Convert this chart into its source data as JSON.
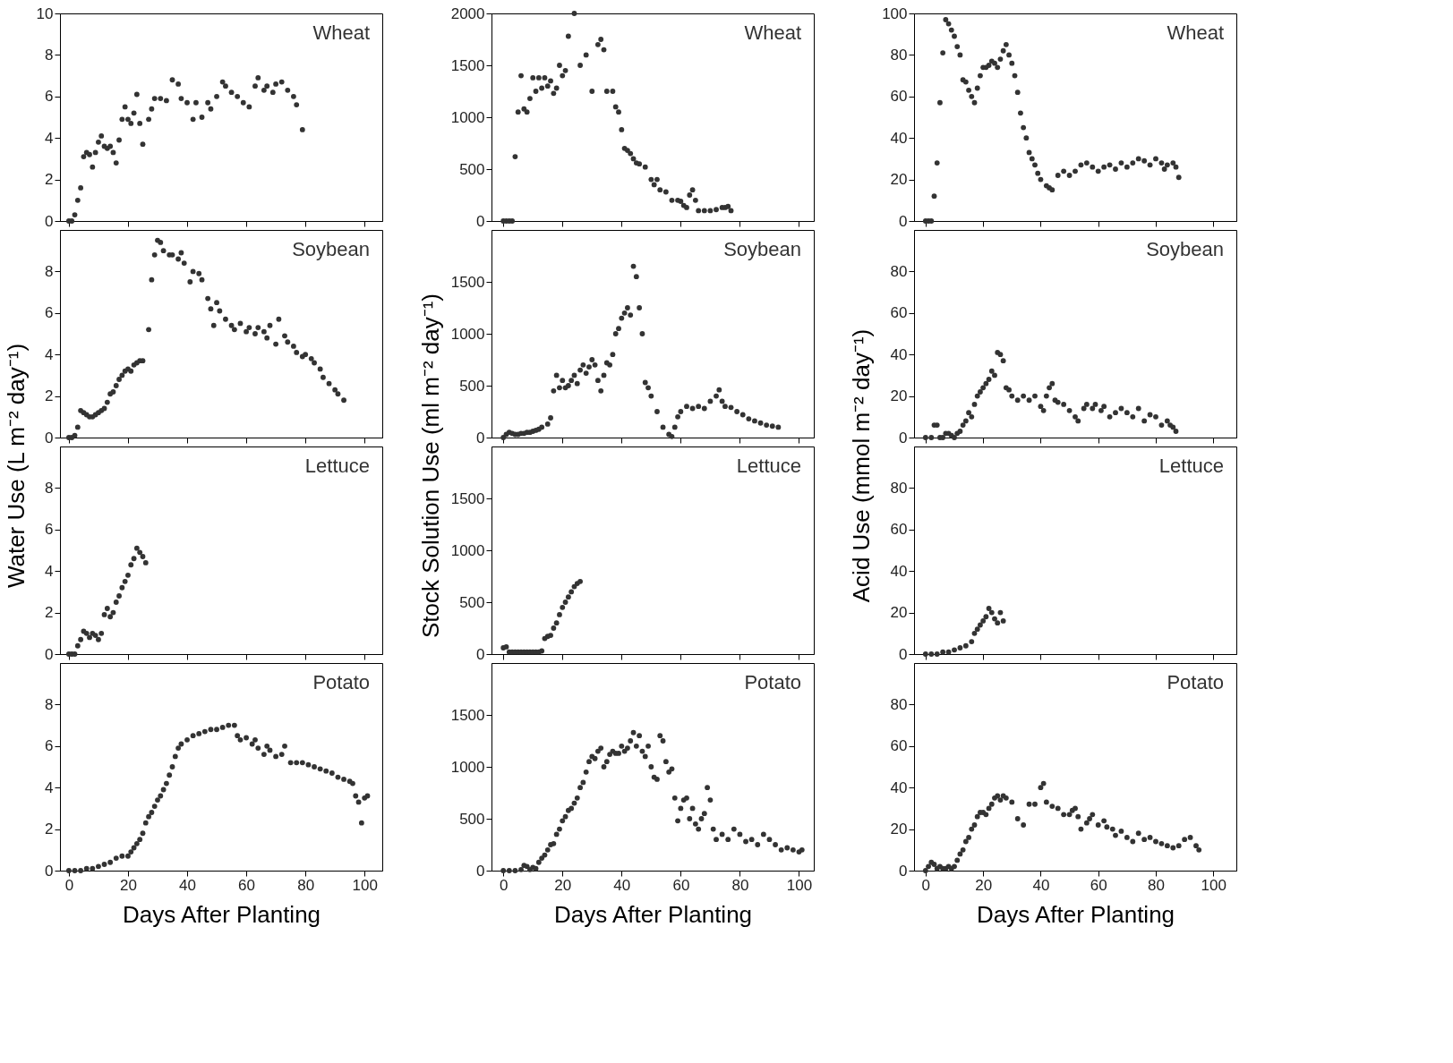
{
  "chart_data": [
    {
      "type": "scatter",
      "title": "Wheat",
      "ylabel": "Water Use (L m⁻² day⁻¹)",
      "color": "#333333",
      "marker": "circle",
      "tick_labels": "y",
      "xlim": [
        -3,
        106
      ],
      "ylim": [
        0,
        10
      ],
      "xticks": [
        0,
        20,
        40,
        60,
        80,
        100
      ],
      "yticks": [
        0,
        2,
        4,
        6,
        8,
        10
      ],
      "x": [
        0,
        1,
        2,
        3,
        4,
        5,
        6,
        7,
        8,
        9,
        10,
        11,
        12,
        13,
        14,
        15,
        16,
        17,
        18,
        19,
        20,
        21,
        22,
        23,
        24,
        25,
        27,
        28,
        29,
        31,
        33,
        35,
        37,
        38,
        40,
        42,
        43,
        45,
        47,
        48,
        50,
        52,
        53,
        55,
        57,
        59,
        61,
        63,
        64,
        66,
        67,
        69,
        70,
        72,
        74,
        76,
        77,
        79
      ],
      "values": [
        0,
        0,
        0.3,
        1.0,
        1.6,
        3.1,
        3.3,
        3.2,
        2.6,
        3.3,
        3.8,
        4.1,
        3.6,
        3.5,
        3.6,
        3.3,
        2.8,
        3.9,
        4.9,
        5.5,
        4.9,
        4.7,
        5.2,
        6.1,
        4.7,
        3.7,
        4.9,
        5.4,
        5.9,
        5.9,
        5.8,
        6.8,
        6.6,
        5.9,
        5.7,
        4.9,
        5.7,
        5.0,
        5.7,
        5.4,
        6.0,
        6.7,
        6.5,
        6.2,
        6.0,
        5.7,
        5.5,
        6.5,
        6.9,
        6.3,
        6.5,
        6.2,
        6.6,
        6.7,
        6.3,
        6.0,
        5.6,
        4.4
      ]
    },
    {
      "type": "scatter",
      "title": "Soybean",
      "color": "#333333",
      "marker": "circle",
      "tick_labels": "y",
      "xlim": [
        -3,
        106
      ],
      "ylim": [
        0,
        10
      ],
      "xticks": [
        0,
        20,
        40,
        60,
        80,
        100
      ],
      "yticks": [
        0,
        2,
        4,
        6,
        8
      ],
      "x": [
        0,
        1,
        2,
        3,
        4,
        5,
        6,
        7,
        8,
        9,
        10,
        11,
        12,
        13,
        14,
        15,
        16,
        17,
        18,
        19,
        20,
        21,
        22,
        23,
        24,
        25,
        27,
        28,
        29,
        30,
        31,
        32,
        34,
        35,
        37,
        38,
        39,
        41,
        42,
        44,
        45,
        47,
        48,
        49,
        50,
        51,
        53,
        55,
        56,
        58,
        60,
        61,
        63,
        64,
        66,
        67,
        68,
        70,
        71,
        73,
        74,
        76,
        77,
        79,
        80,
        82,
        83,
        85,
        86,
        88,
        90,
        91,
        93
      ],
      "values": [
        0,
        0,
        0.1,
        0.5,
        1.3,
        1.2,
        1.1,
        1.0,
        1.0,
        1.1,
        1.2,
        1.3,
        1.4,
        1.7,
        2.1,
        2.2,
        2.5,
        2.8,
        3.0,
        3.2,
        3.3,
        3.2,
        3.5,
        3.6,
        3.7,
        3.7,
        5.2,
        7.6,
        8.8,
        9.5,
        9.4,
        9.0,
        8.8,
        8.8,
        8.6,
        8.9,
        8.4,
        7.5,
        8.0,
        7.9,
        7.6,
        6.7,
        6.2,
        5.4,
        6.5,
        6.1,
        5.7,
        5.4,
        5.2,
        5.5,
        5.1,
        5.3,
        5.0,
        5.3,
        5.1,
        4.8,
        5.4,
        4.5,
        5.7,
        4.9,
        4.6,
        4.4,
        4.1,
        3.9,
        4.0,
        3.8,
        3.6,
        3.3,
        2.9,
        2.6,
        2.3,
        2.1,
        1.8
      ]
    },
    {
      "type": "scatter",
      "title": "Lettuce",
      "color": "#333333",
      "marker": "circle",
      "tick_labels": "y",
      "xlim": [
        -3,
        106
      ],
      "ylim": [
        0,
        10
      ],
      "xticks": [
        0,
        20,
        40,
        60,
        80,
        100
      ],
      "yticks": [
        0,
        2,
        4,
        6,
        8
      ],
      "x": [
        0,
        1,
        2,
        3,
        4,
        5,
        6,
        7,
        8,
        9,
        10,
        11,
        12,
        13,
        14,
        15,
        16,
        17,
        18,
        19,
        20,
        21,
        22,
        23,
        24,
        25,
        26
      ],
      "values": [
        0,
        0,
        0,
        0.4,
        0.7,
        1.1,
        1.0,
        0.8,
        1.0,
        0.9,
        0.7,
        1.0,
        1.9,
        2.2,
        1.8,
        2.0,
        2.5,
        2.8,
        3.2,
        3.5,
        3.8,
        4.3,
        4.6,
        5.1,
        4.9,
        4.7,
        4.4
      ]
    },
    {
      "type": "scatter",
      "title": "Potato",
      "xlabel": "Days After Planting",
      "color": "#333333",
      "marker": "circle",
      "xlim": [
        -3,
        106
      ],
      "ylim": [
        0,
        10
      ],
      "xticks": [
        0,
        20,
        40,
        60,
        80,
        100
      ],
      "yticks": [
        0,
        2,
        4,
        6,
        8
      ],
      "x": [
        0,
        2,
        4,
        6,
        8,
        10,
        12,
        14,
        16,
        18,
        20,
        21,
        22,
        23,
        24,
        25,
        26,
        27,
        28,
        29,
        30,
        31,
        32,
        33,
        34,
        35,
        36,
        37,
        38,
        40,
        42,
        44,
        46,
        48,
        50,
        52,
        54,
        56,
        57,
        58,
        60,
        62,
        63,
        64,
        66,
        67,
        68,
        70,
        72,
        73,
        75,
        77,
        79,
        81,
        83,
        85,
        87,
        89,
        91,
        93,
        95,
        96,
        97,
        98,
        99,
        100,
        101
      ],
      "values": [
        0,
        0,
        0,
        0.1,
        0.1,
        0.2,
        0.3,
        0.4,
        0.6,
        0.7,
        0.7,
        0.9,
        1.1,
        1.3,
        1.5,
        1.8,
        2.3,
        2.6,
        2.8,
        3.1,
        3.4,
        3.6,
        3.9,
        4.2,
        4.6,
        5.0,
        5.5,
        5.9,
        6.1,
        6.3,
        6.5,
        6.6,
        6.7,
        6.8,
        6.8,
        6.9,
        7.0,
        7.0,
        6.5,
        6.3,
        6.4,
        6.1,
        6.3,
        5.9,
        5.6,
        6.0,
        5.8,
        5.5,
        5.6,
        6.0,
        5.2,
        5.2,
        5.2,
        5.1,
        5.0,
        4.9,
        4.8,
        4.7,
        4.5,
        4.4,
        4.3,
        4.2,
        3.6,
        3.3,
        2.3,
        3.5,
        3.6
      ]
    },
    {
      "type": "scatter",
      "title": "Wheat",
      "ylabel": "Stock Solution Use (ml m⁻² day⁻¹)",
      "color": "#333333",
      "marker": "circle",
      "tick_labels": "y",
      "xlim": [
        -4,
        105
      ],
      "ylim": [
        0,
        2000
      ],
      "xticks": [
        0,
        20,
        40,
        60,
        80,
        100
      ],
      "yticks": [
        0,
        500,
        1000,
        1500,
        2000
      ],
      "x": [
        0,
        1,
        2,
        3,
        4,
        5,
        6,
        7,
        8,
        9,
        10,
        11,
        12,
        13,
        14,
        15,
        16,
        17,
        18,
        19,
        20,
        21,
        22,
        24,
        26,
        28,
        30,
        32,
        33,
        34,
        35,
        37,
        38,
        39,
        40,
        41,
        42,
        43,
        44,
        45,
        46,
        48,
        50,
        51,
        52,
        53,
        55,
        57,
        59,
        60,
        61,
        62,
        63,
        64,
        65,
        66,
        68,
        70,
        72,
        74,
        75,
        76,
        77
      ],
      "values": [
        0,
        0,
        0,
        0,
        620,
        1050,
        1400,
        1080,
        1050,
        1180,
        1380,
        1250,
        1380,
        1280,
        1380,
        1300,
        1350,
        1230,
        1280,
        1500,
        1400,
        1450,
        1780,
        2000,
        1500,
        1600,
        1250,
        1700,
        1750,
        1650,
        1250,
        1250,
        1100,
        1050,
        880,
        700,
        680,
        650,
        600,
        560,
        550,
        520,
        400,
        350,
        400,
        300,
        280,
        200,
        200,
        190,
        150,
        130,
        250,
        300,
        200,
        100,
        100,
        100,
        110,
        130,
        130,
        140,
        100
      ]
    },
    {
      "type": "scatter",
      "title": "Soybean",
      "color": "#333333",
      "marker": "circle",
      "tick_labels": "y",
      "xlim": [
        -4,
        105
      ],
      "ylim": [
        0,
        2000
      ],
      "xticks": [
        0,
        20,
        40,
        60,
        80,
        100
      ],
      "yticks": [
        0,
        500,
        1000,
        1500
      ],
      "x": [
        0,
        1,
        2,
        3,
        4,
        5,
        6,
        7,
        8,
        9,
        10,
        11,
        12,
        13,
        15,
        16,
        17,
        18,
        19,
        20,
        21,
        22,
        23,
        24,
        25,
        26,
        27,
        28,
        29,
        30,
        31,
        32,
        33,
        34,
        35,
        36,
        37,
        38,
        39,
        40,
        41,
        42,
        43,
        44,
        45,
        46,
        47,
        48,
        49,
        50,
        52,
        54,
        56,
        57,
        58,
        59,
        60,
        62,
        64,
        66,
        68,
        70,
        72,
        73,
        74,
        75,
        77,
        79,
        81,
        83,
        85,
        87,
        89,
        91,
        93
      ],
      "values": [
        0,
        30,
        50,
        40,
        30,
        30,
        40,
        40,
        50,
        50,
        60,
        70,
        80,
        100,
        130,
        190,
        450,
        600,
        480,
        550,
        480,
        500,
        550,
        600,
        520,
        650,
        700,
        620,
        680,
        750,
        700,
        550,
        450,
        600,
        720,
        700,
        800,
        1000,
        1050,
        1150,
        1200,
        1250,
        1180,
        1650,
        1550,
        1250,
        1000,
        530,
        480,
        400,
        250,
        100,
        30,
        10,
        100,
        200,
        250,
        300,
        280,
        300,
        280,
        350,
        400,
        460,
        350,
        300,
        290,
        250,
        220,
        180,
        160,
        140,
        120,
        110,
        100
      ]
    },
    {
      "type": "scatter",
      "title": "Lettuce",
      "color": "#333333",
      "marker": "circle",
      "tick_labels": "y",
      "xlim": [
        -4,
        105
      ],
      "ylim": [
        0,
        2000
      ],
      "xticks": [
        0,
        20,
        40,
        60,
        80,
        100
      ],
      "yticks": [
        0,
        500,
        1000,
        1500
      ],
      "x": [
        0,
        1,
        2,
        3,
        4,
        5,
        6,
        7,
        8,
        9,
        10,
        11,
        12,
        13,
        14,
        15,
        16,
        17,
        18,
        19,
        20,
        21,
        22,
        23,
        24,
        25,
        26
      ],
      "values": [
        60,
        70,
        20,
        20,
        20,
        20,
        20,
        20,
        20,
        20,
        20,
        20,
        20,
        30,
        150,
        170,
        180,
        250,
        300,
        380,
        450,
        500,
        550,
        600,
        650,
        680,
        700
      ]
    },
    {
      "type": "scatter",
      "title": "Potato",
      "xlabel": "Days After Planting",
      "color": "#333333",
      "marker": "circle",
      "xlim": [
        -4,
        105
      ],
      "ylim": [
        0,
        2000
      ],
      "xticks": [
        0,
        20,
        40,
        60,
        80,
        100
      ],
      "yticks": [
        0,
        500,
        1000,
        1500
      ],
      "x": [
        0,
        2,
        4,
        6,
        7,
        8,
        9,
        10,
        11,
        12,
        13,
        14,
        15,
        16,
        17,
        18,
        19,
        20,
        21,
        22,
        23,
        24,
        25,
        26,
        27,
        28,
        29,
        30,
        31,
        32,
        33,
        34,
        35,
        36,
        37,
        38,
        39,
        40,
        41,
        42,
        43,
        44,
        45,
        46,
        47,
        48,
        49,
        50,
        51,
        52,
        53,
        54,
        55,
        56,
        57,
        58,
        59,
        60,
        61,
        62,
        63,
        64,
        65,
        66,
        67,
        68,
        69,
        70,
        71,
        72,
        74,
        76,
        78,
        80,
        82,
        84,
        86,
        88,
        90,
        92,
        94,
        96,
        98,
        100,
        101
      ],
      "values": [
        0,
        0,
        0,
        10,
        50,
        40,
        10,
        30,
        20,
        80,
        120,
        150,
        200,
        250,
        260,
        350,
        400,
        480,
        520,
        580,
        600,
        650,
        700,
        800,
        850,
        950,
        1050,
        1100,
        1080,
        1150,
        1180,
        1000,
        1050,
        1120,
        1150,
        1130,
        1130,
        1200,
        1150,
        1180,
        1250,
        1330,
        1200,
        1300,
        1150,
        1100,
        1200,
        1000,
        900,
        880,
        1300,
        1250,
        1050,
        950,
        980,
        700,
        480,
        600,
        680,
        700,
        500,
        600,
        450,
        400,
        500,
        550,
        800,
        680,
        400,
        300,
        350,
        300,
        400,
        350,
        280,
        300,
        250,
        350,
        300,
        250,
        200,
        220,
        200,
        180,
        200
      ]
    },
    {
      "type": "scatter",
      "title": "Wheat",
      "ylabel": "Acid Use (mmol m⁻² day⁻¹)",
      "color": "#333333",
      "marker": "circle",
      "tick_labels": "y",
      "xlim": [
        -4,
        108
      ],
      "ylim": [
        0,
        100
      ],
      "xticks": [
        0,
        20,
        40,
        60,
        80,
        100
      ],
      "yticks": [
        0,
        20,
        40,
        60,
        80,
        100
      ],
      "x": [
        0,
        1,
        2,
        3,
        4,
        5,
        6,
        7,
        8,
        9,
        10,
        11,
        12,
        13,
        14,
        15,
        16,
        17,
        18,
        19,
        20,
        21,
        22,
        23,
        24,
        25,
        26,
        27,
        28,
        29,
        30,
        31,
        32,
        33,
        34,
        35,
        36,
        37,
        38,
        39,
        40,
        42,
        43,
        44,
        46,
        48,
        50,
        52,
        54,
        56,
        58,
        60,
        62,
        64,
        66,
        68,
        70,
        72,
        74,
        76,
        78,
        80,
        82,
        83,
        84,
        86,
        87,
        88
      ],
      "values": [
        0,
        0,
        0,
        12,
        28,
        57,
        81,
        97,
        95,
        92,
        89,
        84,
        80,
        68,
        67,
        63,
        60,
        57,
        64,
        70,
        74,
        74,
        75,
        77,
        76,
        74,
        78,
        82,
        85,
        80,
        76,
        70,
        62,
        52,
        45,
        40,
        33,
        30,
        27,
        23,
        20,
        17,
        16,
        15,
        22,
        24,
        22,
        24,
        27,
        28,
        26,
        24,
        26,
        27,
        25,
        28,
        26,
        28,
        30,
        29,
        27,
        30,
        28,
        25,
        27,
        28,
        26,
        21
      ]
    },
    {
      "type": "scatter",
      "title": "Soybean",
      "color": "#333333",
      "marker": "circle",
      "tick_labels": "y",
      "xlim": [
        -4,
        108
      ],
      "ylim": [
        0,
        100
      ],
      "xticks": [
        0,
        20,
        40,
        60,
        80,
        100
      ],
      "yticks": [
        0,
        20,
        40,
        60,
        80
      ],
      "x": [
        0,
        2,
        3,
        4,
        5,
        6,
        7,
        8,
        9,
        10,
        11,
        12,
        13,
        14,
        15,
        16,
        17,
        18,
        19,
        20,
        21,
        22,
        23,
        24,
        25,
        26,
        27,
        28,
        29,
        30,
        32,
        34,
        36,
        38,
        40,
        41,
        42,
        43,
        44,
        45,
        46,
        48,
        50,
        52,
        53,
        55,
        56,
        58,
        59,
        61,
        62,
        64,
        66,
        68,
        70,
        72,
        74,
        76,
        78,
        80,
        82,
        84,
        85,
        86,
        87
      ],
      "values": [
        0,
        0,
        6,
        6,
        0,
        0,
        2,
        2,
        1,
        0,
        2,
        3,
        6,
        8,
        12,
        10,
        16,
        20,
        22,
        24,
        26,
        28,
        32,
        30,
        41,
        40,
        37,
        24,
        23,
        20,
        18,
        20,
        18,
        20,
        15,
        13,
        20,
        24,
        26,
        18,
        17,
        16,
        13,
        10,
        8,
        14,
        16,
        14,
        16,
        13,
        15,
        10,
        12,
        14,
        12,
        10,
        14,
        8,
        11,
        10,
        6,
        8,
        6,
        5,
        3
      ]
    },
    {
      "type": "scatter",
      "title": "Lettuce",
      "color": "#333333",
      "marker": "circle",
      "tick_labels": "y",
      "xlim": [
        -4,
        108
      ],
      "ylim": [
        0,
        100
      ],
      "xticks": [
        0,
        20,
        40,
        60,
        80,
        100
      ],
      "yticks": [
        0,
        20,
        40,
        60,
        80
      ],
      "x": [
        0,
        2,
        4,
        6,
        8,
        10,
        12,
        14,
        16,
        17,
        18,
        19,
        20,
        21,
        22,
        23,
        24,
        25,
        26,
        27
      ],
      "values": [
        0,
        0,
        0,
        1,
        1,
        2,
        3,
        4,
        6,
        10,
        12,
        14,
        16,
        18,
        22,
        20,
        17,
        15,
        20,
        16
      ]
    },
    {
      "type": "scatter",
      "title": "Potato",
      "xlabel": "Days After Planting",
      "color": "#333333",
      "marker": "circle",
      "xlim": [
        -4,
        108
      ],
      "ylim": [
        0,
        100
      ],
      "xticks": [
        0,
        20,
        40,
        60,
        80,
        100
      ],
      "yticks": [
        0,
        20,
        40,
        60,
        80
      ],
      "x": [
        0,
        1,
        2,
        3,
        4,
        5,
        6,
        7,
        8,
        9,
        10,
        11,
        12,
        13,
        14,
        15,
        16,
        17,
        18,
        19,
        20,
        21,
        22,
        23,
        24,
        25,
        26,
        27,
        28,
        30,
        32,
        34,
        36,
        38,
        40,
        41,
        42,
        44,
        46,
        48,
        50,
        51,
        52,
        53,
        54,
        56,
        57,
        58,
        60,
        62,
        63,
        65,
        66,
        68,
        70,
        72,
        74,
        76,
        78,
        80,
        82,
        84,
        86,
        88,
        90,
        92,
        94,
        95
      ],
      "values": [
        0,
        2,
        4,
        3,
        1,
        2,
        1,
        1,
        2,
        1,
        2,
        5,
        8,
        10,
        14,
        16,
        20,
        22,
        26,
        28,
        28,
        27,
        30,
        32,
        35,
        36,
        34,
        36,
        35,
        33,
        25,
        22,
        32,
        32,
        40,
        42,
        33,
        31,
        30,
        27,
        27,
        29,
        30,
        26,
        20,
        23,
        25,
        27,
        22,
        24,
        21,
        20,
        17,
        19,
        16,
        14,
        18,
        15,
        16,
        14,
        13,
        12,
        11,
        12,
        15,
        16,
        12,
        10
      ]
    }
  ]
}
